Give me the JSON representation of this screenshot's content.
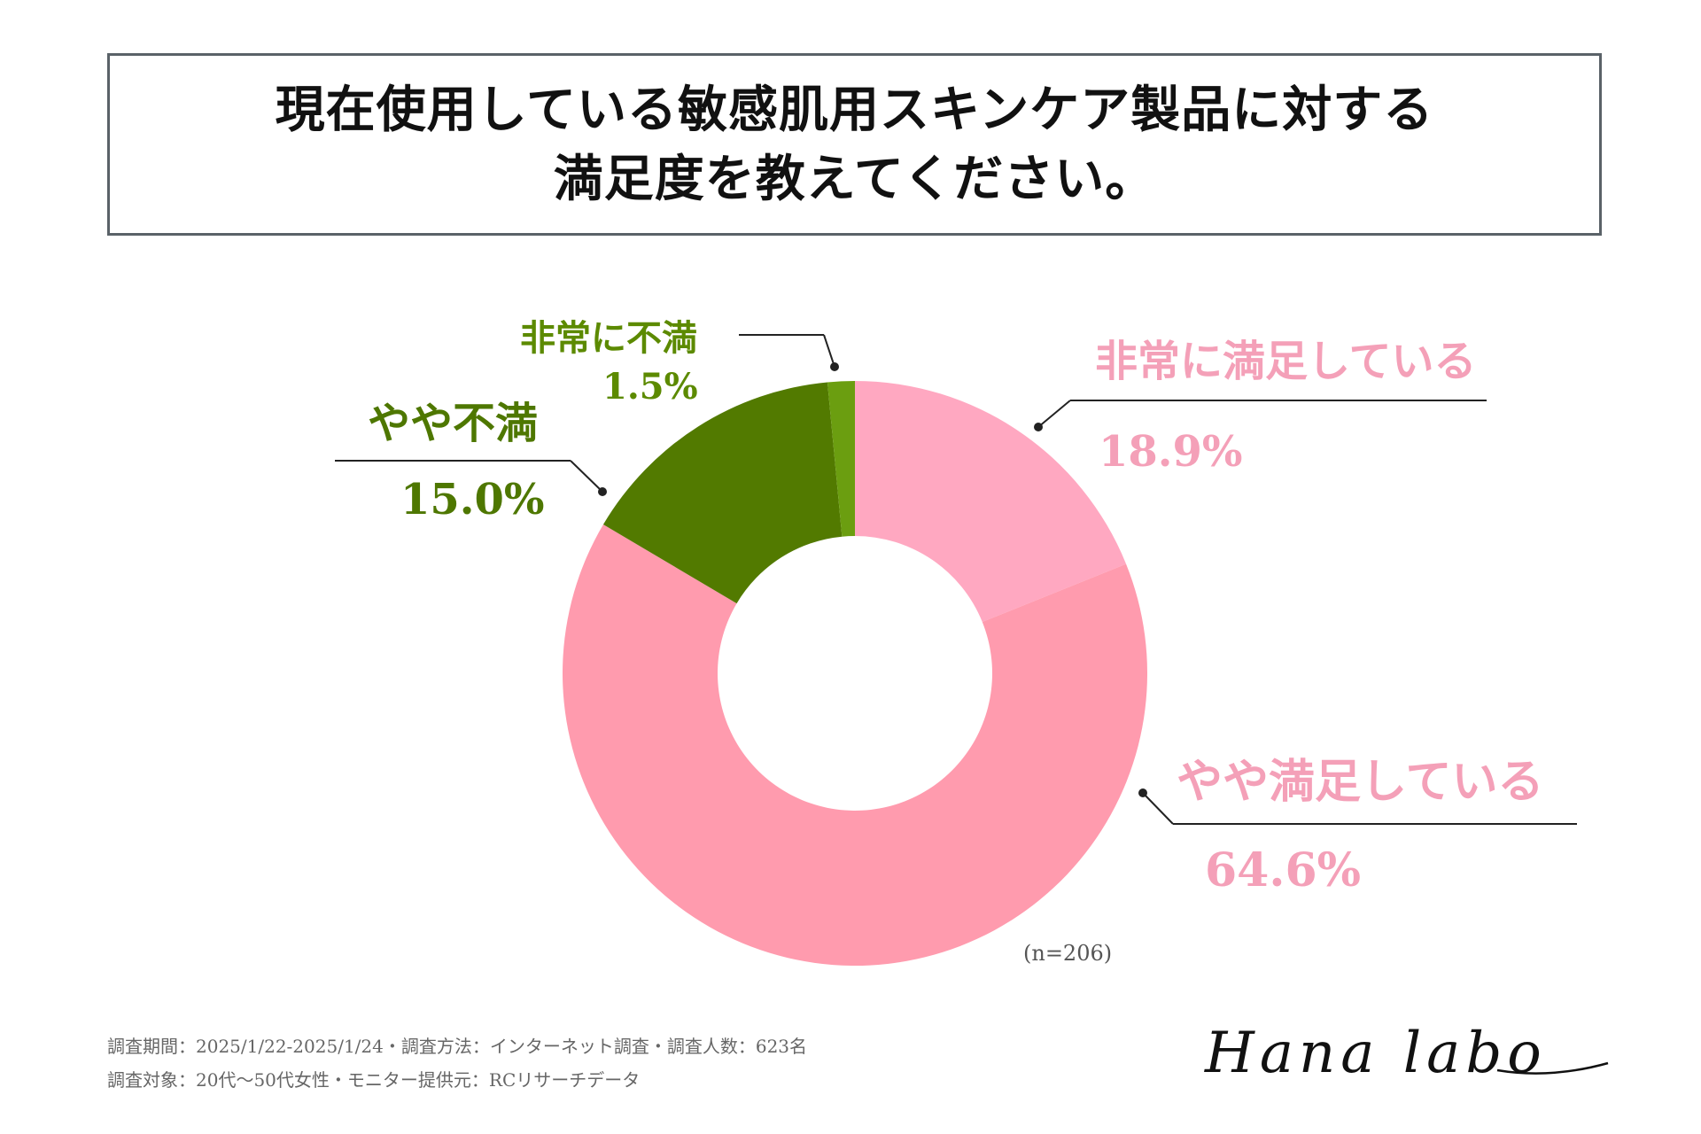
{
  "title": {
    "line1": "現在使用している敏感肌用スキンケア製品に対する",
    "line2": "満足度を教えてください。"
  },
  "sample_size": "(n=206)",
  "footer": {
    "line1": "調査期間：2025/1/22-2025/1/24・調査方法：インターネット調査・調査人数：623名",
    "line2": "調査対象：20代〜50代女性・モニター提供元：RCリサーチデータ"
  },
  "logo_text": "Hana labo",
  "colors": {
    "very_satisfied": "#FFA8C1",
    "somewhat_satisfied": "#FF9BAE",
    "somewhat_dissatisfied": "#527A00",
    "very_dissatisfied": "#6B9E10",
    "pink_text": "#F4A0B8",
    "green_text": "#5C8A00",
    "dark_green_text": "#4E7700"
  },
  "chart_data": {
    "type": "pie",
    "donut": true,
    "title": "現在使用している敏感肌用スキンケア製品に対する満足度を教えてください。",
    "categories": [
      "非常に満足している",
      "やや満足している",
      "やや不満",
      "非常に不満"
    ],
    "values": [
      18.9,
      64.6,
      15.0,
      1.5
    ],
    "value_labels": [
      "18.9%",
      "64.6%",
      "15.0%",
      "1.5%"
    ],
    "unit": "%"
  }
}
